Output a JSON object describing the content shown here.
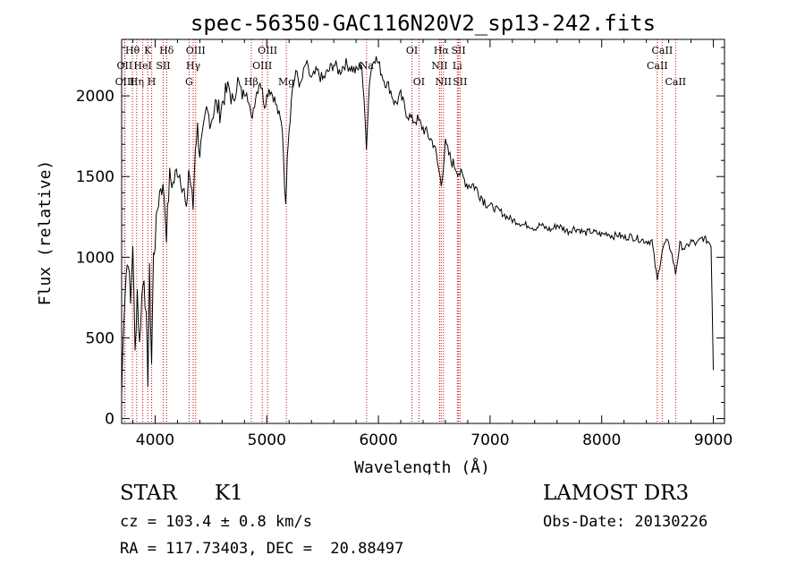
{
  "chart_data": {
    "type": "line",
    "title": "spec-56350-GAC116N20V2_sp13-242.fits",
    "xlabel": "Wavelength (Å)",
    "ylabel": "Flux (relative)",
    "xlim": [
      3700,
      9100
    ],
    "ylim": [
      -30,
      2350
    ],
    "xticks": [
      4000,
      5000,
      6000,
      7000,
      8000,
      9000
    ],
    "yticks": [
      0,
      500,
      1000,
      1500,
      2000
    ],
    "series": [
      {
        "name": "flux",
        "x": [
          3700,
          3720,
          3740,
          3760,
          3780,
          3800,
          3820,
          3840,
          3860,
          3880,
          3900,
          3920,
          3935,
          3950,
          3968,
          3985,
          4000,
          4020,
          4050,
          4080,
          4101,
          4130,
          4160,
          4200,
          4230,
          4260,
          4280,
          4300,
          4320,
          4340,
          4360,
          4380,
          4400,
          4430,
          4460,
          4500,
          4540,
          4580,
          4620,
          4660,
          4700,
          4740,
          4780,
          4820,
          4861,
          4900,
          4940,
          4980,
          5020,
          5060,
          5100,
          5140,
          5170,
          5183,
          5200,
          5230,
          5270,
          5300,
          5350,
          5400,
          5450,
          5500,
          5550,
          5600,
          5650,
          5700,
          5750,
          5800,
          5850,
          5893,
          5920,
          5960,
          6000,
          6050,
          6100,
          6150,
          6200,
          6250,
          6300,
          6350,
          6400,
          6450,
          6500,
          6563,
          6600,
          6650,
          6700,
          6750,
          6800,
          6850,
          6900,
          6950,
          7000,
          7050,
          7100,
          7150,
          7200,
          7250,
          7300,
          7350,
          7400,
          7450,
          7500,
          7550,
          7600,
          7650,
          7700,
          7750,
          7800,
          7850,
          7900,
          7950,
          8000,
          8050,
          8100,
          8150,
          8200,
          8250,
          8300,
          8350,
          8400,
          8450,
          8498,
          8542,
          8580,
          8620,
          8662,
          8700,
          8750,
          8800,
          8850,
          8900,
          8950,
          8980,
          9000
        ],
        "values": [
          150,
          650,
          900,
          1000,
          700,
          1100,
          400,
          800,
          450,
          750,
          900,
          600,
          250,
          900,
          350,
          1000,
          1100,
          1300,
          1450,
          1400,
          1150,
          1500,
          1450,
          1550,
          1500,
          1400,
          1250,
          1550,
          1450,
          1300,
          1700,
          1800,
          1650,
          1750,
          1900,
          1850,
          1950,
          1900,
          2000,
          2050,
          1950,
          2100,
          2000,
          2050,
          1850,
          2000,
          2100,
          1950,
          2050,
          2000,
          1900,
          1800,
          1300,
          1650,
          1800,
          2050,
          2150,
          2050,
          2200,
          2100,
          2150,
          2100,
          2150,
          2200,
          2150,
          2200,
          2180,
          2150,
          2200,
          1700,
          2100,
          2250,
          2200,
          2100,
          2050,
          1950,
          2000,
          1900,
          1850,
          1850,
          1800,
          1750,
          1700,
          1450,
          1700,
          1600,
          1550,
          1500,
          1450,
          1450,
          1400,
          1350,
          1320,
          1300,
          1280,
          1250,
          1230,
          1220,
          1200,
          1200,
          1180,
          1200,
          1180,
          1170,
          1200,
          1180,
          1160,
          1180,
          1170,
          1150,
          1160,
          1150,
          1140,
          1150,
          1130,
          1140,
          1120,
          1130,
          1120,
          1110,
          1100,
          1100,
          850,
          1050,
          1100,
          1050,
          900,
          1080,
          1050,
          1100,
          1080,
          1120,
          1100,
          1080,
          300
        ]
      }
    ],
    "lines": [
      {
        "wavelength": 3797,
        "label": "Hθ",
        "row": 1
      },
      {
        "wavelength": 3727,
        "label": "OII",
        "row": 2
      },
      {
        "wavelength": 3729,
        "label": "OIII",
        "row": 3
      },
      {
        "wavelength": 3835,
        "label": "Hη",
        "row": 3
      },
      {
        "wavelength": 3889,
        "label": "HeI",
        "row": 2
      },
      {
        "wavelength": 3934,
        "label": "K",
        "row": 1
      },
      {
        "wavelength": 3969,
        "label": "H",
        "row": 3
      },
      {
        "wavelength": 4072,
        "label": "SII",
        "row": 2
      },
      {
        "wavelength": 4102,
        "label": "Hδ",
        "row": 1
      },
      {
        "wavelength": 4304,
        "label": "G",
        "row": 3
      },
      {
        "wavelength": 4341,
        "label": "Hγ",
        "row": 2
      },
      {
        "wavelength": 4363,
        "label": "OIII",
        "row": 1
      },
      {
        "wavelength": 4861,
        "label": "Hβ",
        "row": 3
      },
      {
        "wavelength": 4959,
        "label": "OIII",
        "row": 2
      },
      {
        "wavelength": 5007,
        "label": "OIII",
        "row": 1
      },
      {
        "wavelength": 5175,
        "label": "Mg",
        "row": 3
      },
      {
        "wavelength": 5894,
        "label": "Na",
        "row": 2
      },
      {
        "wavelength": 6300,
        "label": "OI",
        "row": 1
      },
      {
        "wavelength": 6363,
        "label": "OI",
        "row": 3
      },
      {
        "wavelength": 6548,
        "label": "NII",
        "row": 2
      },
      {
        "wavelength": 6563,
        "label": "Hα",
        "row": 1
      },
      {
        "wavelength": 6583,
        "label": "NII",
        "row": 3
      },
      {
        "wavelength": 6707,
        "label": "Li",
        "row": 2
      },
      {
        "wavelength": 6717,
        "label": "SII",
        "row": 1
      },
      {
        "wavelength": 6731,
        "label": "SII",
        "row": 3
      },
      {
        "wavelength": 8498,
        "label": "CaII",
        "row": 2
      },
      {
        "wavelength": 8542,
        "label": "CaII",
        "row": 1
      },
      {
        "wavelength": 8662,
        "label": "CaII",
        "row": 3
      }
    ],
    "line_color": "#cc0000"
  },
  "info": {
    "object_class": "STAR",
    "subclass": "K1",
    "survey": "LAMOST DR3",
    "cz": "cz = 103.4 ± 0.8 km/s",
    "obs_date": "Obs-Date: 20130226",
    "radec": "RA = 117.73403, DEC =  20.88497"
  }
}
